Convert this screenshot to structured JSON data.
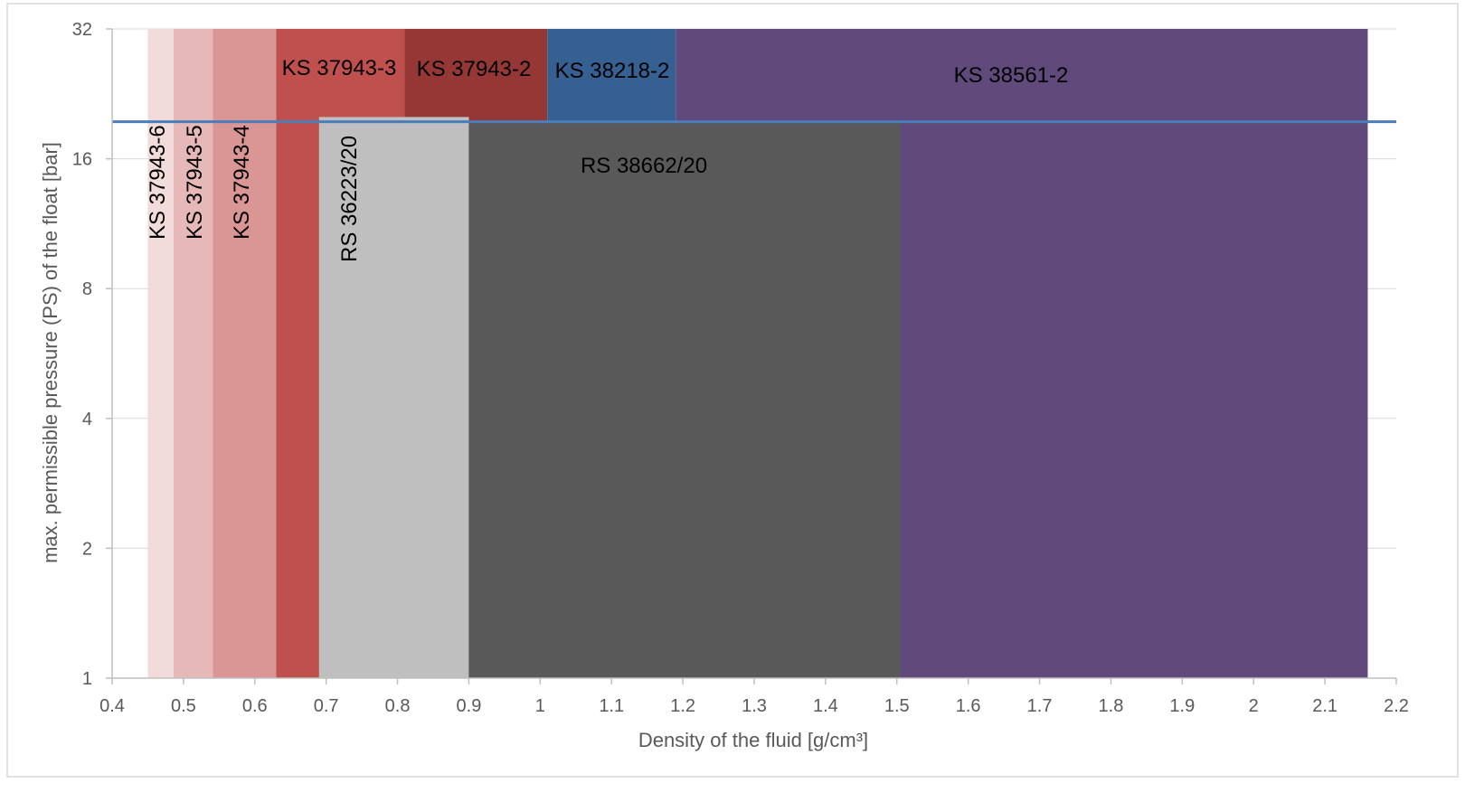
{
  "chart_data": {
    "type": "area",
    "xlabel": "Density of the fluid [g/cm³]",
    "ylabel": "max. permissible pressure (PS) of the float [bar]",
    "xlim": [
      0.4,
      2.2
    ],
    "ylim": [
      1,
      32
    ],
    "y_scale": "log2",
    "x_ticks": [
      "0.4",
      "0.5",
      "0.6",
      "0.7",
      "0.8",
      "0.9",
      "1",
      "1.1",
      "1.2",
      "1.3",
      "1.4",
      "1.5",
      "1.6",
      "1.7",
      "1.8",
      "1.9",
      "2",
      "2.1",
      "2.2"
    ],
    "y_ticks": [
      "1",
      "2",
      "4",
      "8",
      "16",
      "32"
    ],
    "grid": "horizontal",
    "legend": "none",
    "series": [
      {
        "name": "KS 37943-6",
        "x": [
          0.45,
          0.486
        ],
        "y": [
          1,
          32
        ],
        "color": "#f2dcdb",
        "label_orientation": "vertical"
      },
      {
        "name": "KS 37943-5",
        "x": [
          0.486,
          0.541
        ],
        "y": [
          1,
          32
        ],
        "color": "#e6b9b8",
        "label_orientation": "vertical"
      },
      {
        "name": "KS 37943-4",
        "x": [
          0.541,
          0.63
        ],
        "y": [
          1,
          32
        ],
        "color": "#d99694",
        "label_orientation": "vertical"
      },
      {
        "name": "KS 37943-3",
        "x": [
          0.63,
          0.81
        ],
        "y": [
          1,
          32
        ],
        "color": "#c0504d",
        "label_orientation": "horizontal"
      },
      {
        "name": "KS 37943-2",
        "x": [
          0.81,
          1.01
        ],
        "y": [
          1,
          32
        ],
        "color": "#953735",
        "label_orientation": "horizontal"
      },
      {
        "name": "KS 38218-2",
        "x": [
          1.01,
          1.19
        ],
        "y": [
          1,
          32
        ],
        "color": "#376092",
        "label_orientation": "horizontal"
      },
      {
        "name": "KS 38561-2",
        "x": [
          1.19,
          2.16
        ],
        "y": [
          1,
          32
        ],
        "color": "#604a7b",
        "label_orientation": "horizontal"
      },
      {
        "name": "RS 36223/20",
        "x": [
          0.69,
          0.9
        ],
        "y": [
          1,
          20
        ],
        "color": "#bfbfbf",
        "label_orientation": "vertical"
      },
      {
        "name": "RS 38662/20",
        "x": [
          0.9,
          1.505
        ],
        "y": [
          1,
          19.5
        ],
        "color": "#595959",
        "label_orientation": "horizontal"
      }
    ],
    "reference_line": {
      "y": 19.5,
      "color": "#4a7ebb"
    }
  }
}
